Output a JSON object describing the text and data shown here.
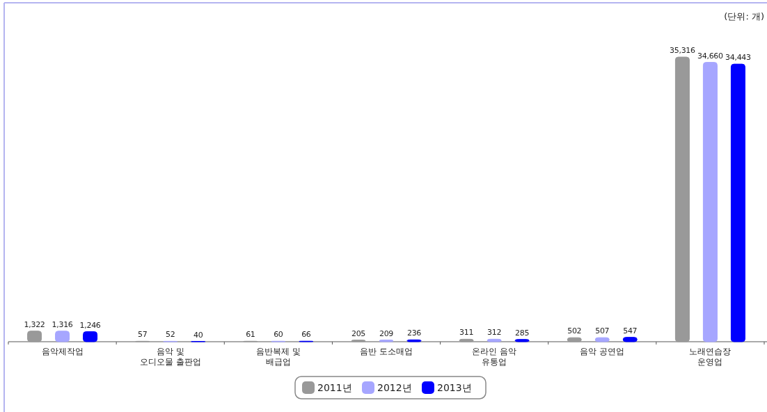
{
  "chart_data": {
    "type": "bar",
    "categories": [
      "음악제작업",
      "음악 및\n오디오물 출판업",
      "음반복제 및\n배급업",
      "음반 도소매업",
      "온라인 음악\n유통업",
      "음악 공연업",
      "노래연습장\n운영업"
    ],
    "series": [
      {
        "name": "2011년",
        "color": "#999999",
        "values": [
          1322,
          57,
          61,
          205,
          311,
          502,
          35316
        ],
        "value_labels": [
          "1,322",
          "57",
          "61",
          "205",
          "311",
          "502",
          "35,316"
        ]
      },
      {
        "name": "2012년",
        "color": "#a6a6ff",
        "values": [
          1316,
          52,
          60,
          209,
          312,
          507,
          34660
        ],
        "value_labels": [
          "1,316",
          "52",
          "60",
          "209",
          "312",
          "507",
          "34,660"
        ]
      },
      {
        "name": "2013년",
        "color": "#0000ff",
        "values": [
          1246,
          40,
          66,
          236,
          285,
          547,
          34443
        ],
        "value_labels": [
          "1,246",
          "40",
          "66",
          "236",
          "285",
          "547",
          "34,443"
        ]
      }
    ],
    "legend": "bottom",
    "annotations": [
      "(단위:  개)"
    ]
  }
}
